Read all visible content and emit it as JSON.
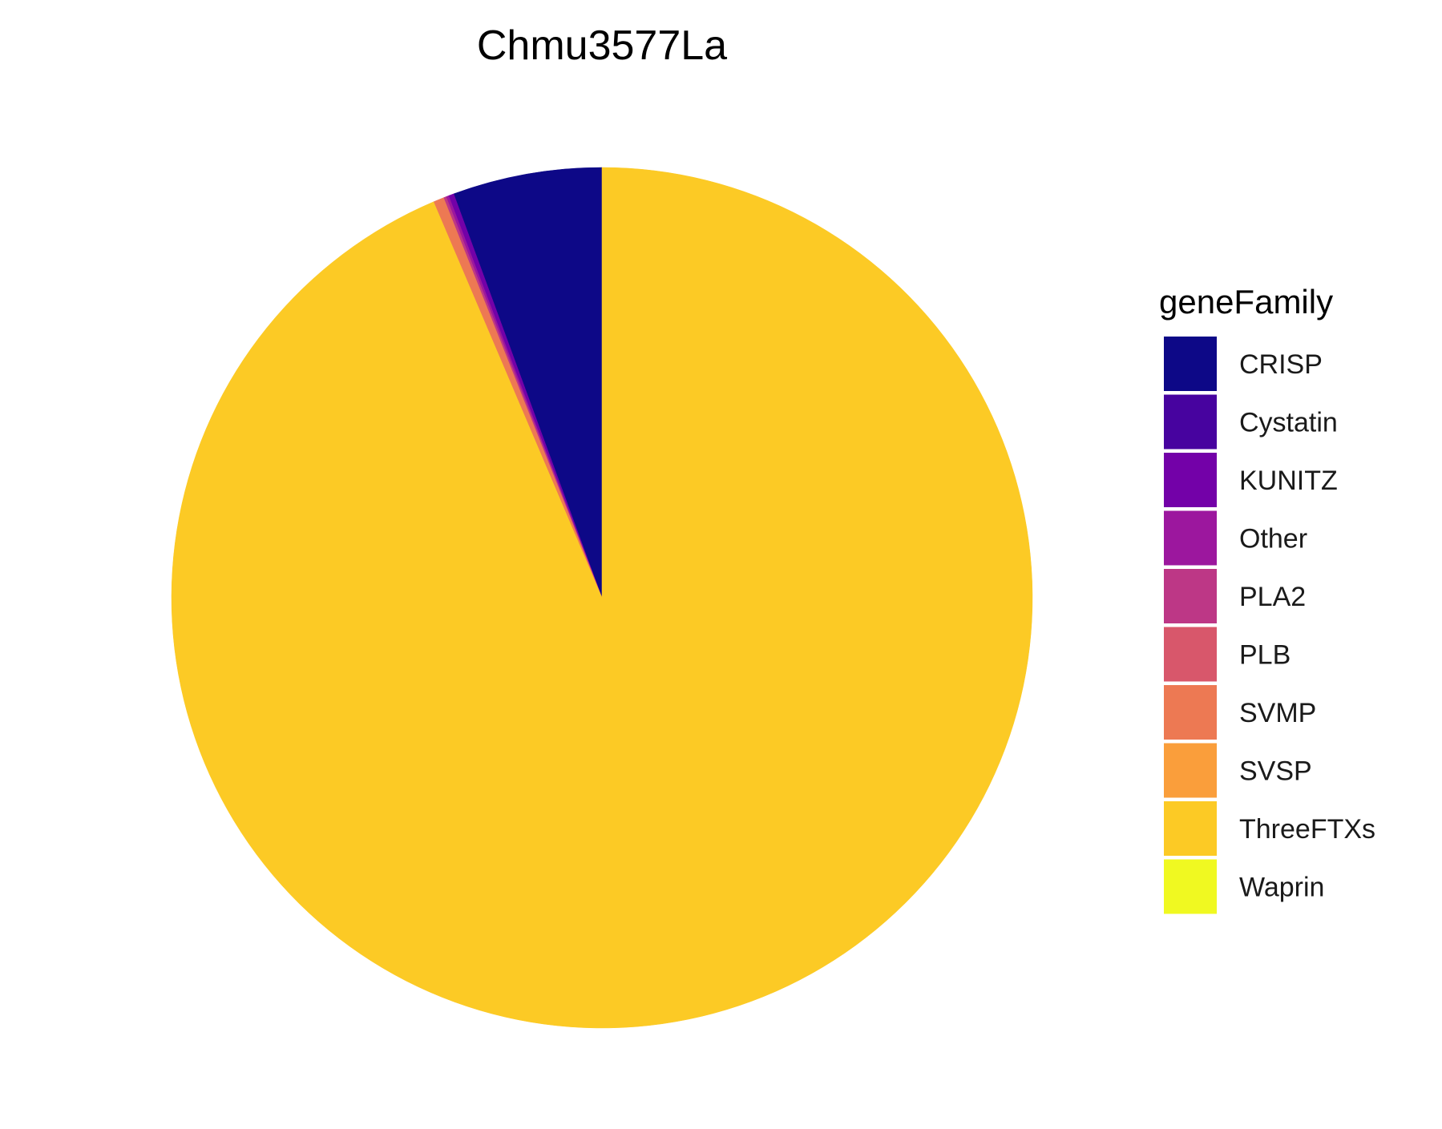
{
  "chart_data": {
    "type": "pie",
    "title": "Chmu3577La",
    "legend_title": "geneFamily",
    "legend_position": "right",
    "start_angle": "12 o'clock",
    "direction": "counter-clockwise",
    "slices": [
      {
        "label": "CRISP",
        "value": 5.6,
        "color": "#0D0887"
      },
      {
        "label": "Cystatin",
        "value": 0.0,
        "color": "#47039F"
      },
      {
        "label": "KUNITZ",
        "value": 0.2,
        "color": "#7301A8"
      },
      {
        "label": "Other",
        "value": 0.1,
        "color": "#9C179E"
      },
      {
        "label": "PLA2",
        "value": 0.1,
        "color": "#BD3786"
      },
      {
        "label": "PLB",
        "value": 0.0,
        "color": "#D8576B"
      },
      {
        "label": "SVMP",
        "value": 0.4,
        "color": "#ED7953"
      },
      {
        "label": "SVSP",
        "value": 0.0,
        "color": "#FA9E3B"
      },
      {
        "label": "ThreeFTXs",
        "value": 93.6,
        "color": "#FCCA25"
      },
      {
        "label": "Waprin",
        "value": 0.0,
        "color": "#F0F921"
      }
    ]
  }
}
